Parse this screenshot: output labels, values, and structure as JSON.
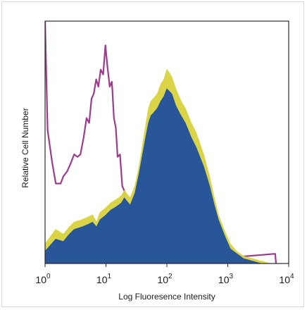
{
  "chart_data": {
    "type": "area",
    "xlabel": "Log Fluoresence Intensity",
    "ylabel": "Relative Cell Number",
    "x_scale": "log",
    "xlim": [
      1,
      10000
    ],
    "ylim": [
      0,
      100
    ],
    "grid": false,
    "legend": "none",
    "x_ticks": [
      {
        "base": "10",
        "exp": "0"
      },
      {
        "base": "10",
        "exp": "1"
      },
      {
        "base": "10",
        "exp": "2"
      },
      {
        "base": "10",
        "exp": "3"
      },
      {
        "base": "10",
        "exp": "4"
      }
    ],
    "series": [
      {
        "style": "outline",
        "color": "#9b3c8c",
        "x": [
          1.0,
          1.1,
          1.3,
          1.5,
          1.8,
          2.0,
          2.3,
          2.6,
          3.0,
          3.4,
          3.8,
          4.3,
          4.8,
          5.3,
          5.8,
          6.3,
          6.9,
          7.5,
          8.2,
          9.0,
          9.8,
          10.5,
          11.5,
          12.5,
          13.5,
          14.5,
          15.5,
          17,
          18.5,
          20,
          22,
          24,
          27,
          30,
          34,
          38,
          42,
          47,
          53,
          60,
          70,
          6000,
          6200
        ],
        "y": [
          100,
          55,
          42,
          33,
          33,
          36,
          38,
          41,
          45,
          44,
          45,
          52,
          60,
          58,
          68,
          70,
          76,
          73,
          80,
          78,
          90,
          82,
          73,
          75,
          60,
          56,
          44,
          45,
          32,
          30,
          24,
          20,
          15,
          14,
          10,
          6,
          4,
          3,
          2,
          1,
          0,
          4,
          0
        ]
      },
      {
        "style": "filled",
        "color": "#d8d23c",
        "x": [
          1.0,
          1.5,
          2.0,
          2.5,
          3.0,
          4.0,
          5.0,
          6.0,
          7.0,
          8.0,
          10,
          12,
          14,
          16,
          18,
          20,
          25,
          30,
          35,
          40,
          45,
          50,
          55,
          60,
          70,
          80,
          90,
          100,
          120,
          140,
          170,
          200,
          250,
          300,
          400,
          500,
          600,
          700,
          900,
          1100,
          1400,
          1800,
          2500,
          3500,
          5000
        ],
        "y": [
          8,
          14,
          12,
          15,
          17,
          18,
          19,
          20,
          17,
          21,
          23,
          25,
          26,
          27,
          28,
          30,
          27,
          32,
          40,
          49,
          57,
          64,
          67,
          68,
          70,
          74,
          76,
          80,
          77,
          72,
          67,
          64,
          58,
          54,
          45,
          36,
          27,
          20,
          13,
          8,
          5,
          3,
          2,
          1,
          0
        ]
      },
      {
        "style": "filled",
        "color": "#1f4f9e",
        "x": [
          1.0,
          1.5,
          2.0,
          2.5,
          3.0,
          4.0,
          5.0,
          6.0,
          7.0,
          8.0,
          10,
          12,
          14,
          16,
          18,
          20,
          25,
          30,
          35,
          40,
          45,
          50,
          55,
          60,
          70,
          80,
          90,
          100,
          120,
          140,
          170,
          200,
          250,
          300,
          400,
          500,
          600,
          700,
          900,
          1100,
          1400,
          1800,
          2500,
          3500,
          5000
        ],
        "y": [
          5,
          10,
          9,
          12,
          14,
          15,
          16,
          17,
          15,
          18,
          20,
          22,
          23,
          24,
          25,
          27,
          24,
          29,
          37,
          45,
          52,
          58,
          61,
          62,
          64,
          67,
          69,
          72,
          70,
          65,
          61,
          58,
          52,
          48,
          40,
          32,
          24,
          18,
          11,
          6,
          4,
          2,
          1,
          0,
          0
        ]
      }
    ]
  }
}
